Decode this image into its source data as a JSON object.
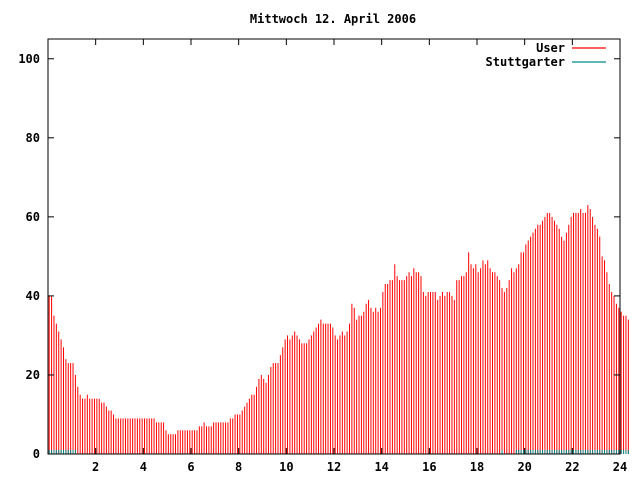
{
  "chart_data": {
    "type": "bar",
    "title": "Mittwoch 12. April 2006",
    "xlabel": "",
    "ylabel": "",
    "xlim": [
      0,
      24
    ],
    "ylim": [
      0,
      105
    ],
    "x_ticks": [
      "2",
      "4",
      "6",
      "8",
      "10",
      "12",
      "14",
      "16",
      "18",
      "20",
      "22",
      "24"
    ],
    "y_ticks": [
      "0",
      "20",
      "40",
      "60",
      "80",
      "100"
    ],
    "grid": false,
    "legend_position": "top-right",
    "series": [
      {
        "name": "User",
        "color": "#ff0000",
        "x_step_hours": 0.1,
        "values": [
          40,
          40,
          35,
          33,
          31,
          29,
          27,
          24,
          23,
          23,
          23,
          20,
          17,
          15,
          14,
          14,
          15,
          14,
          14,
          14,
          14,
          14,
          13,
          13,
          12,
          11,
          11,
          10,
          9,
          9,
          9,
          9,
          9,
          9,
          9,
          9,
          9,
          9,
          9,
          9,
          9,
          9,
          9,
          9,
          9,
          8,
          8,
          8,
          8,
          6,
          5,
          5,
          5,
          5,
          6,
          6,
          6,
          6,
          6,
          6,
          6,
          6,
          6,
          7,
          7,
          8,
          7,
          7,
          7,
          8,
          8,
          8,
          8,
          8,
          8,
          8,
          9,
          9,
          10,
          10,
          10,
          11,
          12,
          13,
          14,
          15,
          15,
          17,
          19,
          20,
          19,
          18,
          20,
          22,
          23,
          23,
          23,
          25,
          27,
          29,
          30,
          29,
          30,
          31,
          30,
          29,
          28,
          28,
          28,
          29,
          30,
          31,
          32,
          33,
          34,
          33,
          33,
          33,
          33,
          32,
          30,
          29,
          30,
          31,
          30,
          31,
          33,
          38,
          37,
          34,
          35,
          35,
          36,
          38,
          39,
          37,
          36,
          37,
          36,
          37,
          41,
          43,
          43,
          44,
          44,
          48,
          45,
          44,
          44,
          44,
          45,
          46,
          45,
          47,
          46,
          46,
          45,
          41,
          40,
          41,
          41,
          41,
          41,
          39,
          40,
          41,
          40,
          41,
          41,
          40,
          39,
          44,
          44,
          45,
          45,
          46,
          51,
          48,
          47,
          48,
          46,
          47,
          49,
          48,
          49,
          47,
          46,
          46,
          45,
          44,
          42,
          41,
          42,
          44,
          47,
          46,
          47,
          48,
          51,
          51,
          53,
          54,
          55,
          56,
          57,
          58,
          58,
          59,
          60,
          61,
          61,
          60,
          59,
          58,
          57,
          55,
          54,
          56,
          58,
          60,
          61,
          61,
          61,
          62,
          61,
          61,
          63,
          62,
          60,
          58,
          57,
          55,
          50,
          49,
          46,
          43,
          41,
          40,
          38,
          37,
          36,
          35,
          35,
          34
        ]
      },
      {
        "name": "Stuttgarter",
        "color": "#008b8b",
        "x_step_hours": 0.1,
        "values": [
          1,
          1,
          1,
          1,
          1,
          1,
          1,
          1,
          1,
          1,
          1,
          1,
          0,
          0,
          0,
          0,
          0,
          0,
          0,
          0,
          0,
          0,
          0,
          0,
          0,
          0,
          0,
          0,
          0,
          0,
          0,
          0,
          0,
          0,
          0,
          0,
          0,
          0,
          0,
          0,
          0,
          0,
          0,
          0,
          0,
          0,
          0,
          0,
          0,
          0,
          0,
          0,
          0,
          0,
          0,
          0,
          0,
          0,
          0,
          0,
          0,
          0,
          0,
          0,
          0,
          0,
          0,
          0,
          0,
          0,
          0,
          0,
          0,
          0,
          0,
          0,
          0,
          0,
          0,
          0,
          0,
          0,
          0,
          0,
          0,
          0,
          0,
          0,
          0,
          0,
          0,
          0,
          0,
          0,
          0,
          0,
          0,
          0,
          0,
          0,
          0,
          0,
          0,
          0,
          0,
          0,
          0,
          0,
          0,
          0,
          0,
          0,
          0,
          0,
          0,
          0,
          0,
          0,
          0,
          0,
          0,
          0,
          0,
          0,
          0,
          0,
          0,
          0,
          0,
          0,
          0,
          0,
          0,
          0,
          0,
          0,
          0,
          0,
          0,
          0,
          0,
          0,
          0,
          0,
          0,
          0,
          0,
          0,
          0,
          0,
          0,
          0,
          0,
          0,
          0,
          0,
          0,
          0,
          0,
          0,
          0,
          0,
          0,
          0,
          0,
          0,
          0,
          0,
          0,
          0,
          0,
          0,
          0,
          0,
          0,
          0,
          0,
          0,
          0,
          0,
          0,
          0,
          0,
          0,
          0,
          0,
          0,
          0,
          0,
          0,
          1,
          0,
          0,
          0,
          0,
          0,
          1,
          1,
          1,
          1,
          1,
          1,
          1,
          1,
          1,
          1,
          1,
          1,
          1,
          1,
          1,
          1,
          1,
          1,
          1,
          1,
          1,
          1,
          1,
          1,
          1,
          1,
          1,
          1,
          1,
          1,
          1,
          1,
          1,
          1,
          1,
          1,
          1,
          1,
          1,
          1,
          1,
          1,
          1,
          1,
          1,
          1,
          1,
          1
        ]
      }
    ]
  }
}
